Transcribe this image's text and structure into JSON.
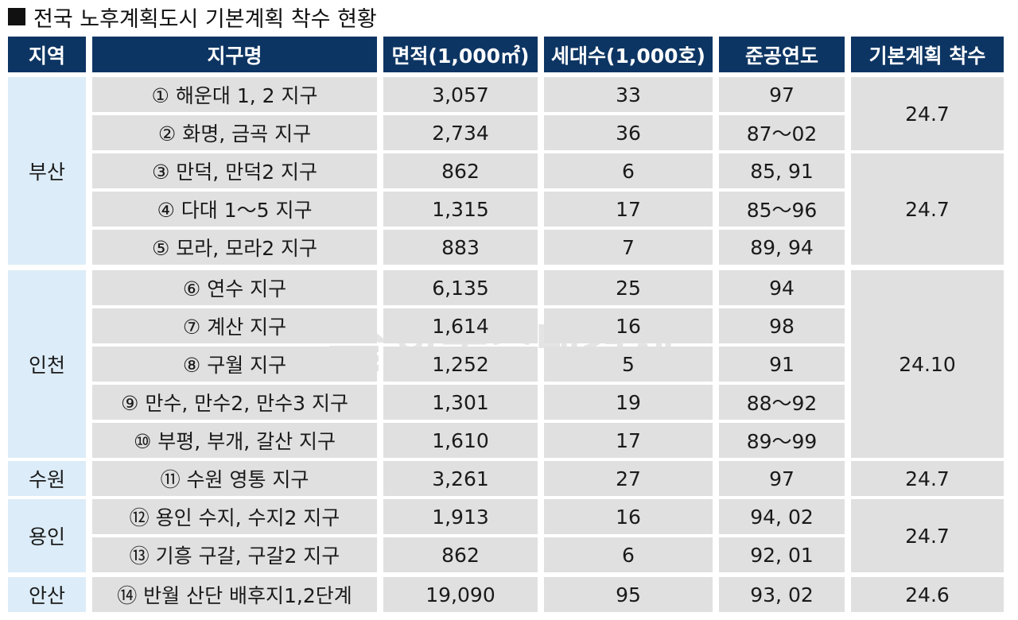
{
  "title": "전국 노후계획도시 기본계획 착수 현황",
  "watermark": "한국주택경제",
  "headers": [
    "지역",
    "지구명",
    "면적(1,000㎡)",
    "세대수(1,000호)",
    "준공연도",
    "기본계획 착수"
  ],
  "rows": [
    {
      "name": "① 해운대 1, 2 지구",
      "area": "3,057",
      "households": "33",
      "year": "97"
    },
    {
      "name": "② 화명, 금곡 지구",
      "area": "2,734",
      "households": "36",
      "year": "87～02"
    },
    {
      "name": "③ 만덕, 만덕2 지구",
      "area": "862",
      "households": "6",
      "year": "85, 91"
    },
    {
      "name": "④ 다대 1～5 지구",
      "area": "1,315",
      "households": "17",
      "year": "85～96"
    },
    {
      "name": "⑤ 모라, 모라2 지구",
      "area": "883",
      "households": "7",
      "year": "89, 94"
    },
    {
      "name": "⑥ 연수 지구",
      "area": "6,135",
      "households": "25",
      "year": "94"
    },
    {
      "name": "⑦ 계산 지구",
      "area": "1,614",
      "households": "16",
      "year": "98"
    },
    {
      "name": "⑧ 구월 지구",
      "area": "1,252",
      "households": "5",
      "year": "91"
    },
    {
      "name": "⑨ 만수, 만수2, 만수3 지구",
      "area": "1,301",
      "households": "19",
      "year": "88～92"
    },
    {
      "name": "⑩ 부평, 부개, 갈산 지구",
      "area": "1,610",
      "households": "17",
      "year": "89～99"
    },
    {
      "name": "⑪ 수원 영통 지구",
      "area": "3,261",
      "households": "27",
      "year": "97"
    },
    {
      "name": "⑫ 용인 수지, 수지2 지구",
      "area": "1,913",
      "households": "16",
      "year": "94, 02"
    },
    {
      "name": "⑬ 기흥 구갈, 구갈2 지구",
      "area": "862",
      "households": "6",
      "year": "92, 01"
    },
    {
      "name": "⑭ 반월 산단 배후지1,2단계",
      "area": "19,090",
      "households": "95",
      "year": "93, 02"
    }
  ],
  "regions": [
    {
      "name": "부산",
      "start": 0,
      "count": 5
    },
    {
      "name": "인천",
      "start": 5,
      "count": 5
    },
    {
      "name": "수원",
      "start": 10,
      "count": 1
    },
    {
      "name": "용인",
      "start": 11,
      "count": 2
    },
    {
      "name": "안산",
      "start": 13,
      "count": 1
    }
  ],
  "plan_groups": [
    {
      "value": "24.7",
      "start": 0,
      "count": 2
    },
    {
      "value": "24.7",
      "start": 2,
      "count": 3
    },
    {
      "value": "24.10",
      "start": 5,
      "count": 5
    },
    {
      "value": "24.7",
      "start": 10,
      "count": 1
    },
    {
      "value": "24.7",
      "start": 11,
      "count": 2
    },
    {
      "value": "24.6",
      "start": 13,
      "count": 1
    }
  ]
}
